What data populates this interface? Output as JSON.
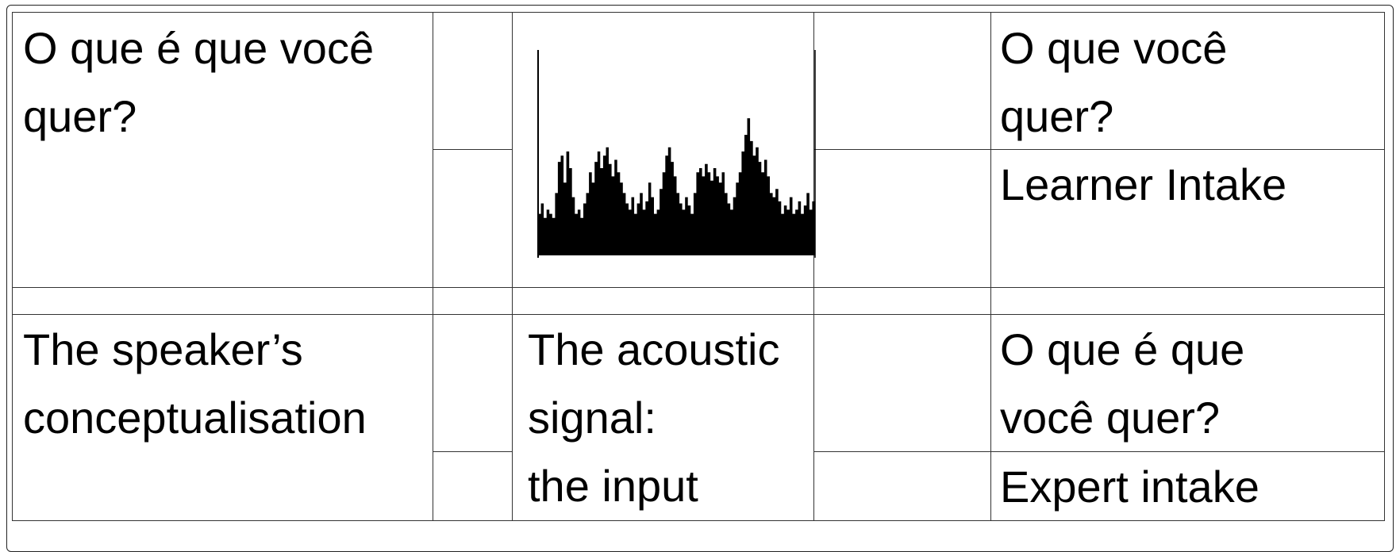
{
  "cells": {
    "top_left": "O que é que você\nquer?",
    "top_right_1": "O que você\nquer?",
    "top_right_2": "Learner Intake",
    "bottom_left": "The speaker’s\nconceptualisation",
    "bottom_middle": "The acoustic\nsignal:\nthe input",
    "bottom_right_1": "O que é que\nvocê quer?",
    "bottom_right_2": "Expert intake"
  },
  "signal": {
    "levels": [
      0.2,
      0.25,
      0.18,
      0.22,
      0.2,
      0.18,
      0.3,
      0.45,
      0.48,
      0.35,
      0.5,
      0.42,
      0.28,
      0.2,
      0.22,
      0.18,
      0.25,
      0.3,
      0.4,
      0.35,
      0.45,
      0.5,
      0.42,
      0.48,
      0.52,
      0.44,
      0.38,
      0.46,
      0.4,
      0.35,
      0.3,
      0.25,
      0.22,
      0.28,
      0.2,
      0.25,
      0.3,
      0.22,
      0.26,
      0.35,
      0.28,
      0.2,
      0.22,
      0.32,
      0.4,
      0.48,
      0.52,
      0.45,
      0.38,
      0.3,
      0.25,
      0.22,
      0.28,
      0.24,
      0.2,
      0.3,
      0.4,
      0.42,
      0.38,
      0.44,
      0.4,
      0.36,
      0.42,
      0.38,
      0.35,
      0.4,
      0.3,
      0.25,
      0.22,
      0.28,
      0.35,
      0.4,
      0.5,
      0.58,
      0.66,
      0.55,
      0.48,
      0.52,
      0.45,
      0.4,
      0.46,
      0.38,
      0.3,
      0.28,
      0.32,
      0.26,
      0.2,
      0.24,
      0.22,
      0.28,
      0.2,
      0.22,
      0.26,
      0.2,
      0.24,
      0.3,
      0.22,
      0.26
    ]
  }
}
